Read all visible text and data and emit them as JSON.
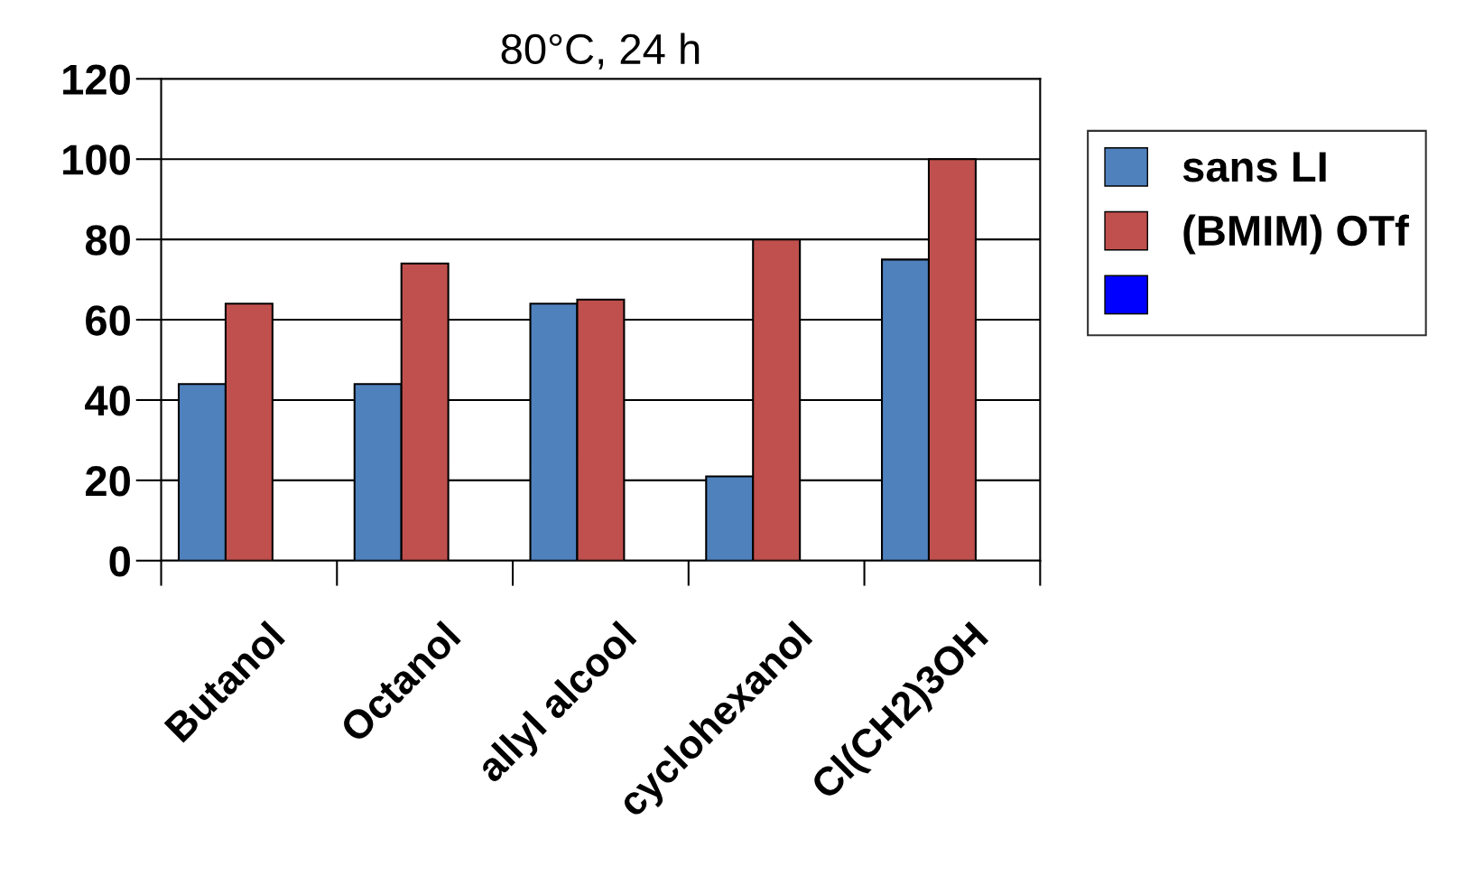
{
  "chart_data": {
    "type": "bar",
    "title": "80°C, 24 h",
    "categories": [
      "Butanol",
      "Octanol",
      "allyl alcool",
      "cyclohexanol",
      "Cl(CH2)3OH"
    ],
    "series": [
      {
        "name": "sans LI",
        "color": "#4f81bd",
        "values": [
          44,
          44,
          64,
          21,
          75
        ]
      },
      {
        "name": "(BMIM) OTf",
        "color": "#c0504d",
        "values": [
          64,
          74,
          65,
          80,
          100
        ]
      },
      {
        "color": "#0000ff",
        "values": [
          null,
          null,
          null,
          null,
          null
        ]
      }
    ],
    "ylim": [
      0,
      120
    ],
    "yticks": [
      0,
      20,
      40,
      60,
      80,
      100,
      120
    ],
    "grid": "y",
    "legend": "right"
  }
}
